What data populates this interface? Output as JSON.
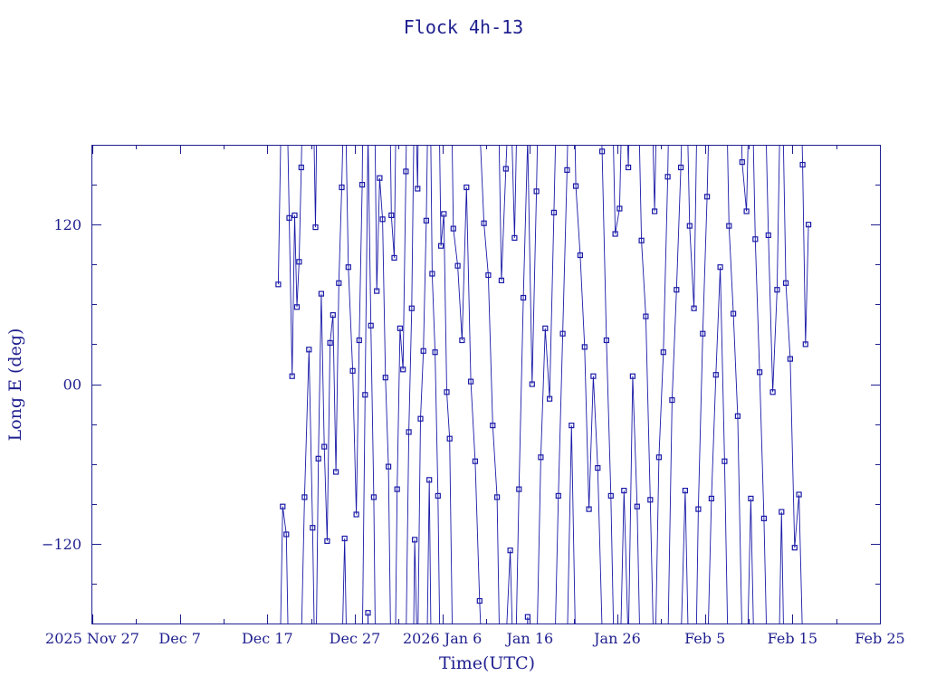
{
  "chart_data": {
    "type": "line",
    "title": "Flock 4h-13",
    "xlabel": "Time(UTC)",
    "ylabel": "Long E (deg)",
    "x_ticks": [
      "2025 Nov 27",
      "Dec 7",
      "Dec 17",
      "Dec 27",
      "2026 Jan 6",
      "Jan 16",
      "Jan 26",
      "Feb 5",
      "Feb 15",
      "Feb 25"
    ],
    "y_ticks": [
      "−120",
      "00",
      "120"
    ],
    "y_tick_values": [
      -120,
      0,
      120
    ],
    "xlim": [
      "2025-11-27",
      "2026-02-25"
    ],
    "ylim": [
      -180,
      180
    ],
    "grid": false,
    "series": [
      {
        "wrap": true,
        "color": "#1a1aa8",
        "marker": "square",
        "points": [
          [
            "2025-12-18",
            75
          ],
          [
            "2025-12-18",
            -92
          ],
          [
            "2025-12-19",
            -113
          ],
          [
            "2025-12-19",
            125
          ],
          [
            "2025-12-19",
            6
          ],
          [
            "2025-12-20",
            127
          ],
          [
            "2025-12-20",
            58
          ],
          [
            "2025-12-20",
            92
          ],
          [
            "2025-12-20",
            163
          ],
          [
            "2025-12-21",
            -85
          ],
          [
            "2025-12-21",
            26
          ],
          [
            "2025-12-22",
            -108
          ],
          [
            "2025-12-22",
            118
          ],
          [
            "2025-12-22",
            -56
          ],
          [
            "2025-12-23",
            68
          ],
          [
            "2025-12-23",
            -47
          ],
          [
            "2025-12-23",
            -118
          ],
          [
            "2025-12-24",
            31
          ],
          [
            "2025-12-24",
            52
          ],
          [
            "2025-12-24",
            -66
          ],
          [
            "2025-12-25",
            76
          ],
          [
            "2025-12-25",
            148
          ],
          [
            "2025-12-25",
            -116
          ],
          [
            "2025-12-26",
            88
          ],
          [
            "2025-12-26",
            10
          ],
          [
            "2025-12-27",
            -98
          ],
          [
            "2025-12-27",
            33
          ],
          [
            "2025-12-27",
            150
          ],
          [
            "2025-12-28",
            -8
          ],
          [
            "2025-12-28",
            -172
          ],
          [
            "2025-12-28",
            44
          ],
          [
            "2025-12-29",
            -85
          ],
          [
            "2025-12-29",
            70
          ],
          [
            "2025-12-29",
            155
          ],
          [
            "2025-12-30",
            124
          ],
          [
            "2025-12-30",
            5
          ],
          [
            "2025-12-30",
            -62
          ],
          [
            "2025-12-31",
            127
          ],
          [
            "2025-12-31",
            95
          ],
          [
            "2025-12-31",
            -79
          ],
          [
            "2026-01-01",
            42
          ],
          [
            "2026-01-01",
            11
          ],
          [
            "2026-01-01",
            160
          ],
          [
            "2026-01-02",
            -36
          ],
          [
            "2026-01-02",
            57
          ],
          [
            "2026-01-02",
            -117
          ],
          [
            "2026-01-03",
            147
          ],
          [
            "2026-01-03",
            -26
          ],
          [
            "2026-01-03",
            25
          ],
          [
            "2026-01-04",
            123
          ],
          [
            "2026-01-04",
            -72
          ],
          [
            "2026-01-04",
            83
          ],
          [
            "2026-01-05",
            24
          ],
          [
            "2026-01-05",
            -84
          ],
          [
            "2026-01-05",
            104
          ],
          [
            "2026-01-06",
            128
          ],
          [
            "2026-01-06",
            -6
          ],
          [
            "2026-01-06",
            -41
          ],
          [
            "2026-01-07",
            117
          ],
          [
            "2026-01-07",
            89
          ],
          [
            "2026-01-08",
            33
          ],
          [
            "2026-01-08",
            148
          ],
          [
            "2026-01-09",
            2
          ],
          [
            "2026-01-09",
            -58
          ],
          [
            "2026-01-10",
            -163
          ],
          [
            "2026-01-10",
            121
          ],
          [
            "2026-01-11",
            82
          ],
          [
            "2026-01-11",
            -31
          ],
          [
            "2026-01-12",
            -85
          ],
          [
            "2026-01-12",
            78
          ],
          [
            "2026-01-13",
            162
          ],
          [
            "2026-01-13",
            -125
          ],
          [
            "2026-01-14",
            110
          ],
          [
            "2026-01-14",
            -79
          ],
          [
            "2026-01-15",
            65
          ],
          [
            "2026-01-15",
            -175
          ],
          [
            "2026-01-16",
            0
          ],
          [
            "2026-01-16",
            145
          ],
          [
            "2026-01-17",
            -55
          ],
          [
            "2026-01-17",
            42
          ],
          [
            "2026-01-18",
            -11
          ],
          [
            "2026-01-18",
            129
          ],
          [
            "2026-01-19",
            -84
          ],
          [
            "2026-01-19",
            38
          ],
          [
            "2026-01-20",
            161
          ],
          [
            "2026-01-20",
            -31
          ],
          [
            "2026-01-21",
            149
          ],
          [
            "2026-01-21",
            97
          ],
          [
            "2026-01-22",
            28
          ],
          [
            "2026-01-22",
            -94
          ],
          [
            "2026-01-23",
            6
          ],
          [
            "2026-01-23",
            -63
          ],
          [
            "2026-01-24",
            175
          ],
          [
            "2026-01-24",
            33
          ],
          [
            "2026-01-25",
            -84
          ],
          [
            "2026-01-25",
            113
          ],
          [
            "2026-01-26",
            132
          ],
          [
            "2026-01-26",
            -80
          ],
          [
            "2026-01-27",
            163
          ],
          [
            "2026-01-27",
            6
          ],
          [
            "2026-01-28",
            -92
          ],
          [
            "2026-01-28",
            108
          ],
          [
            "2026-01-29",
            51
          ],
          [
            "2026-01-29",
            -87
          ],
          [
            "2026-01-30",
            130
          ],
          [
            "2026-01-30",
            -55
          ],
          [
            "2026-01-31",
            24
          ],
          [
            "2026-01-31",
            156
          ],
          [
            "2026-02-01",
            -12
          ],
          [
            "2026-02-01",
            71
          ],
          [
            "2026-02-02",
            163
          ],
          [
            "2026-02-02",
            -80
          ],
          [
            "2026-02-03",
            119
          ],
          [
            "2026-02-03",
            57
          ],
          [
            "2026-02-04",
            -94
          ],
          [
            "2026-02-04",
            38
          ],
          [
            "2026-02-05",
            141
          ],
          [
            "2026-02-05",
            -86
          ],
          [
            "2026-02-06",
            7
          ],
          [
            "2026-02-06",
            88
          ],
          [
            "2026-02-07",
            -58
          ],
          [
            "2026-02-07",
            119
          ],
          [
            "2026-02-08",
            53
          ],
          [
            "2026-02-08",
            -24
          ],
          [
            "2026-02-09",
            167
          ],
          [
            "2026-02-09",
            130
          ],
          [
            "2026-02-10",
            -86
          ],
          [
            "2026-02-10",
            109
          ],
          [
            "2026-02-11",
            9
          ],
          [
            "2026-02-11",
            -101
          ],
          [
            "2026-02-12",
            112
          ],
          [
            "2026-02-12",
            -6
          ],
          [
            "2026-02-13",
            71
          ],
          [
            "2026-02-13",
            -96
          ],
          [
            "2026-02-14",
            76
          ],
          [
            "2026-02-14",
            19
          ],
          [
            "2026-02-15",
            -123
          ],
          [
            "2026-02-15",
            -83
          ],
          [
            "2026-02-16",
            165
          ],
          [
            "2026-02-16",
            30
          ],
          [
            "2026-02-16",
            120
          ]
        ]
      }
    ]
  }
}
